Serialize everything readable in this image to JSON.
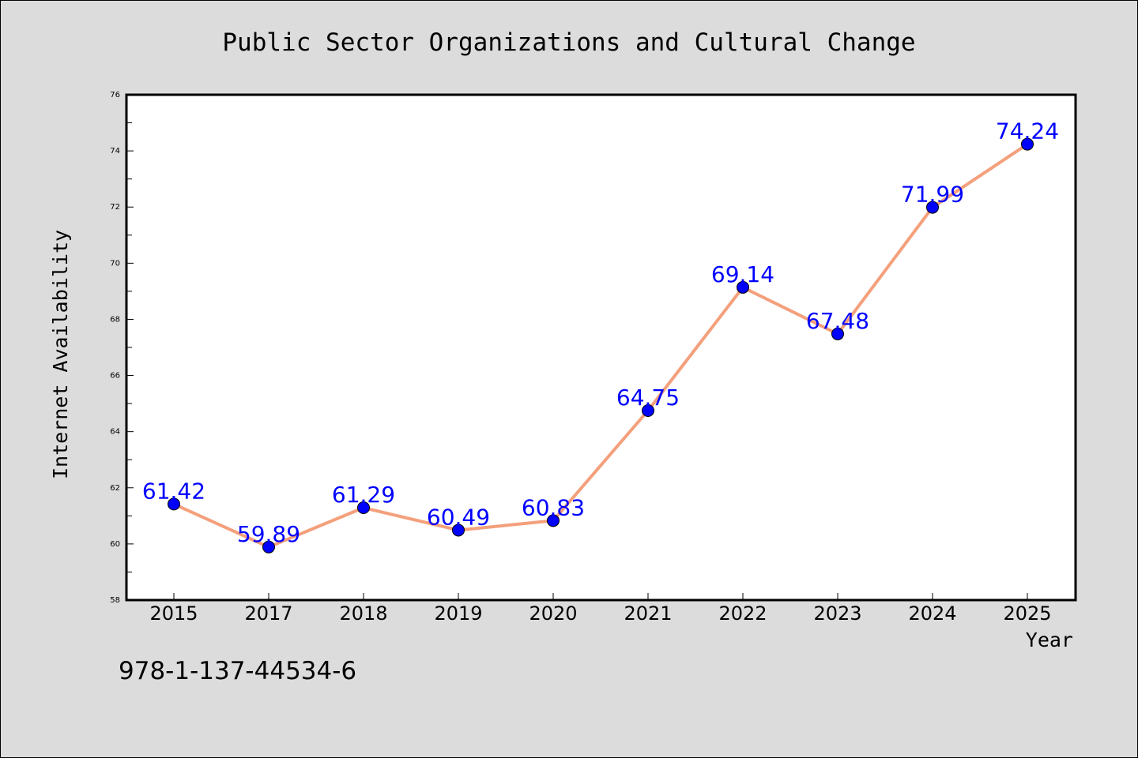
{
  "chart_data": {
    "type": "line",
    "title": "Public Sector Organizations and Cultural Change",
    "xlabel": "Year",
    "ylabel": "Internet Availability",
    "categories": [
      "2015",
      "2017",
      "2018",
      "2019",
      "2020",
      "2021",
      "2022",
      "2023",
      "2024",
      "2025"
    ],
    "values": [
      61.42,
      59.89,
      61.29,
      60.49,
      60.83,
      64.75,
      69.14,
      67.48,
      71.99,
      74.24
    ],
    "data_labels": [
      "61.42",
      "59.89",
      "61.29",
      "60.49",
      "60.83",
      "64.75",
      "69.14",
      "67.48",
      "71.99",
      "74.24"
    ],
    "ylim": [
      58,
      76
    ],
    "yticks": [
      58,
      60,
      62,
      64,
      66,
      68,
      70,
      72,
      74,
      76
    ],
    "grid": false,
    "line_color": "#f4a07c",
    "marker_color": "#0000ff",
    "label_color": "#0000ff",
    "background_color": "#dcdcdc",
    "plot_background": "#ffffff"
  },
  "footer": {
    "isbn": "978-1-137-44534-6"
  }
}
